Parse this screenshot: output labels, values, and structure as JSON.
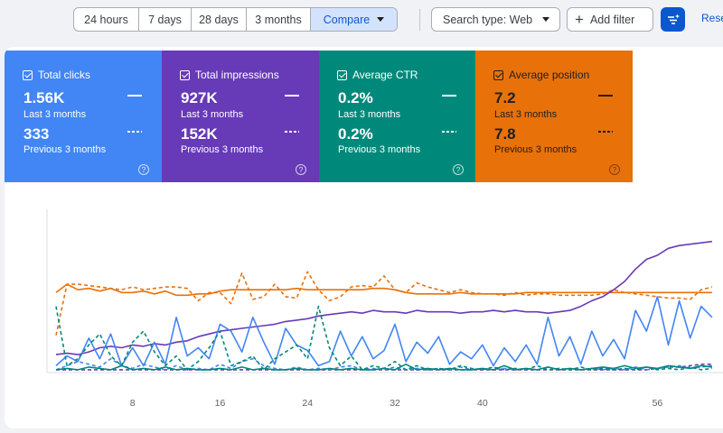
{
  "toolbar": {
    "date_ranges": [
      "24 hours",
      "7 days",
      "28 days",
      "3 months"
    ],
    "compare_label": "Compare",
    "search_type_label": "Search type: Web",
    "add_filter_label": "Add filter",
    "reset_label": "Rese"
  },
  "metrics": [
    {
      "title": "Total clicks",
      "current": "1.56K",
      "current_label": "Last 3 months",
      "previous": "333",
      "previous_label": "Previous 3 months",
      "color": "#4285f4",
      "help": "?"
    },
    {
      "title": "Total impressions",
      "current": "927K",
      "current_label": "Last 3 months",
      "previous": "152K",
      "previous_label": "Previous 3 months",
      "color": "#673ab7",
      "help": "?"
    },
    {
      "title": "Average CTR",
      "current": "0.2%",
      "current_label": "Last 3 months",
      "previous": "0.2%",
      "previous_label": "Previous 3 months",
      "color": "#00897b",
      "help": "?"
    },
    {
      "title": "Average position",
      "current": "7.2",
      "current_label": "Last 3 months",
      "previous": "7.8",
      "previous_label": "Previous 3 months",
      "color": "#e8710a",
      "help": "?"
    }
  ],
  "chart_data": {
    "type": "line",
    "x_ticks": [
      8,
      16,
      24,
      32,
      40,
      56
    ],
    "x_range": [
      1,
      62
    ],
    "y_range": [
      0,
      1
    ],
    "y_inverted_series": [
      "Average position"
    ],
    "grid": false,
    "series": [
      {
        "metric": "Average position",
        "period": "current",
        "style": "solid",
        "color": "#e8710a",
        "values": [
          0.58,
          0.64,
          0.6,
          0.61,
          0.59,
          0.61,
          0.58,
          0.58,
          0.59,
          0.57,
          0.59,
          0.56,
          0.56,
          0.57,
          0.57,
          0.59,
          0.6,
          0.6,
          0.6,
          0.6,
          0.6,
          0.6,
          0.61,
          0.6,
          0.6,
          0.6,
          0.6,
          0.6,
          0.6,
          0.61,
          0.61,
          0.6,
          0.58,
          0.57,
          0.57,
          0.57,
          0.57,
          0.58,
          0.57,
          0.57,
          0.57,
          0.57,
          0.57,
          0.58,
          0.58,
          0.58,
          0.58,
          0.58,
          0.58,
          0.58,
          0.58,
          0.58,
          0.58,
          0.58,
          0.58,
          0.58,
          0.58,
          0.58,
          0.58,
          0.58,
          0.58
        ]
      },
      {
        "metric": "Average position",
        "period": "previous",
        "style": "dashed",
        "color": "#e8710a",
        "values": [
          0.27,
          0.64,
          0.64,
          0.63,
          0.62,
          0.61,
          0.6,
          0.62,
          0.6,
          0.61,
          0.62,
          0.62,
          0.61,
          0.52,
          0.58,
          0.58,
          0.5,
          0.72,
          0.53,
          0.55,
          0.64,
          0.55,
          0.54,
          0.73,
          0.6,
          0.52,
          0.55,
          0.62,
          0.63,
          0.62,
          0.7,
          0.6,
          0.58,
          0.65,
          0.62,
          0.6,
          0.58,
          0.6,
          0.58,
          0.57,
          0.57,
          0.56,
          0.58,
          0.56,
          0.57,
          0.57,
          0.56,
          0.56,
          0.56,
          0.56,
          0.57,
          0.6,
          0.58,
          0.57,
          0.56,
          0.55,
          0.54,
          0.54,
          0.53,
          0.6,
          0.62
        ]
      },
      {
        "metric": "Total impressions",
        "period": "current",
        "style": "solid",
        "color": "#673ab7",
        "values": [
          0.13,
          0.14,
          0.13,
          0.15,
          0.18,
          0.19,
          0.18,
          0.2,
          0.19,
          0.21,
          0.2,
          0.22,
          0.23,
          0.26,
          0.28,
          0.3,
          0.31,
          0.32,
          0.33,
          0.34,
          0.35,
          0.37,
          0.38,
          0.39,
          0.41,
          0.42,
          0.43,
          0.44,
          0.43,
          0.45,
          0.44,
          0.44,
          0.43,
          0.45,
          0.44,
          0.44,
          0.44,
          0.43,
          0.44,
          0.44,
          0.45,
          0.44,
          0.45,
          0.44,
          0.44,
          0.43,
          0.44,
          0.45,
          0.48,
          0.52,
          0.55,
          0.6,
          0.66,
          0.75,
          0.82,
          0.85,
          0.9,
          0.92,
          0.93,
          0.94,
          0.95
        ]
      },
      {
        "metric": "Total impressions",
        "period": "previous",
        "style": "dashed",
        "color": "#673ab7",
        "values": [
          0.02,
          0.02,
          0.02,
          0.02,
          0.02,
          0.02,
          0.02,
          0.02,
          0.02,
          0.02,
          0.02,
          0.02,
          0.02,
          0.02,
          0.02,
          0.02,
          0.02,
          0.02,
          0.02,
          0.02,
          0.02,
          0.02,
          0.02,
          0.02,
          0.02,
          0.02,
          0.02,
          0.02,
          0.02,
          0.02,
          0.02,
          0.02,
          0.02,
          0.02,
          0.02,
          0.02,
          0.02,
          0.02,
          0.02,
          0.02,
          0.02,
          0.02,
          0.02,
          0.02,
          0.02,
          0.02,
          0.02,
          0.02,
          0.02,
          0.02,
          0.02,
          0.02,
          0.02,
          0.02,
          0.02,
          0.03,
          0.04,
          0.04,
          0.05,
          0.06,
          0.06
        ]
      },
      {
        "metric": "Total clicks",
        "period": "current",
        "style": "solid",
        "color": "#4285f4",
        "values": [
          0.05,
          0.12,
          0.08,
          0.25,
          0.1,
          0.28,
          0.05,
          0.18,
          0.05,
          0.22,
          0.06,
          0.4,
          0.12,
          0.18,
          0.1,
          0.35,
          0.3,
          0.15,
          0.4,
          0.22,
          0.06,
          0.32,
          0.2,
          0.16,
          0.05,
          0.08,
          0.3,
          0.12,
          0.26,
          0.1,
          0.16,
          0.35,
          0.08,
          0.22,
          0.14,
          0.26,
          0.06,
          0.15,
          0.1,
          0.2,
          0.05,
          0.18,
          0.08,
          0.2,
          0.06,
          0.4,
          0.12,
          0.26,
          0.06,
          0.3,
          0.12,
          0.24,
          0.1,
          0.45,
          0.3,
          0.55,
          0.2,
          0.52,
          0.25,
          0.48,
          0.4
        ]
      },
      {
        "metric": "Total clicks",
        "period": "previous",
        "style": "dashed",
        "color": "#4285f4",
        "values": [
          0.02,
          0.05,
          0.08,
          0.06,
          0.04,
          0.1,
          0.05,
          0.03,
          0.06,
          0.04,
          0.02,
          0.05,
          0.02,
          0.03,
          0.02,
          0.06,
          0.03,
          0.08,
          0.1,
          0.05,
          0.03,
          0.02,
          0.04,
          0.02,
          0.03,
          0.02,
          0.04,
          0.05,
          0.02,
          0.03,
          0.02,
          0.04,
          0.02,
          0.03,
          0.02,
          0.03,
          0.02,
          0.04,
          0.02,
          0.03,
          0.02,
          0.03,
          0.02,
          0.03,
          0.02,
          0.04,
          0.02,
          0.03,
          0.02,
          0.03,
          0.02,
          0.03,
          0.02,
          0.04,
          0.02,
          0.03,
          0.04,
          0.05,
          0.03,
          0.04,
          0.05
        ]
      },
      {
        "metric": "Average CTR",
        "period": "current",
        "style": "solid",
        "color": "#00897b",
        "values": [
          0.02,
          0.03,
          0.02,
          0.04,
          0.03,
          0.02,
          0.05,
          0.02,
          0.03,
          0.02,
          0.04,
          0.02,
          0.03,
          0.02,
          0.02,
          0.03,
          0.02,
          0.04,
          0.02,
          0.03,
          0.02,
          0.02,
          0.03,
          0.02,
          0.02,
          0.03,
          0.02,
          0.03,
          0.02,
          0.02,
          0.03,
          0.02,
          0.06,
          0.02,
          0.03,
          0.02,
          0.03,
          0.02,
          0.02,
          0.03,
          0.02,
          0.05,
          0.02,
          0.03,
          0.02,
          0.04,
          0.02,
          0.03,
          0.02,
          0.03,
          0.04,
          0.03,
          0.05,
          0.03,
          0.04,
          0.03,
          0.05,
          0.04,
          0.03,
          0.05,
          0.04
        ]
      },
      {
        "metric": "Average CTR",
        "period": "previous",
        "style": "dashed",
        "color": "#00897b",
        "values": [
          0.48,
          0.05,
          0.1,
          0.2,
          0.28,
          0.12,
          0.05,
          0.22,
          0.3,
          0.15,
          0.05,
          0.12,
          0.02,
          0.08,
          0.18,
          0.3,
          0.05,
          0.08,
          0.12,
          0.02,
          0.1,
          0.15,
          0.2,
          0.1,
          0.48,
          0.18,
          0.05,
          0.12,
          0.02,
          0.05,
          0.03,
          0.08,
          0.02,
          0.05,
          0.02,
          0.03,
          0.02,
          0.05,
          0.03,
          0.02,
          0.04,
          0.02,
          0.03,
          0.02,
          0.05,
          0.02,
          0.03,
          0.02,
          0.04,
          0.02,
          0.03,
          0.02,
          0.03,
          0.02,
          0.04,
          0.02,
          0.03,
          0.02,
          0.04,
          0.02,
          0.03
        ]
      }
    ]
  }
}
